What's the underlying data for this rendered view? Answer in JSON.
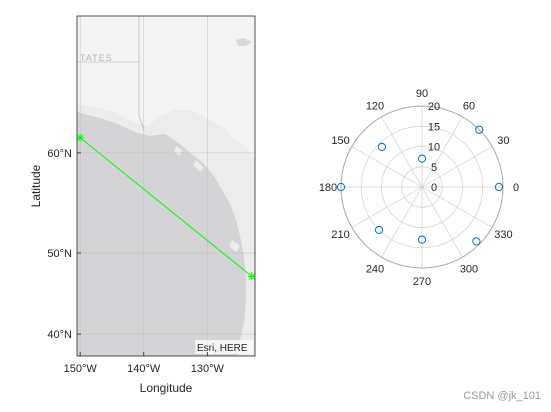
{
  "chart_data": [
    {
      "type": "map-line",
      "basemap_attribution": "Esri, HERE",
      "basemap_place_label": "TATES",
      "xlabel": "Longitude",
      "ylabel": "Latitude",
      "lon_range": [
        -150.5,
        -122.5
      ],
      "lat_range": [
        37,
        70
      ],
      "lon_ticks": [
        -150,
        -140,
        -130
      ],
      "lon_tick_labels": [
        "150°W",
        "140°W",
        "130°W"
      ],
      "lat_ticks": [
        40,
        50,
        60
      ],
      "lat_tick_labels": [
        "40°N",
        "50°N",
        "60°N"
      ],
      "line_color": "#00ff00",
      "line": [
        {
          "lon": -150,
          "lat": 61.3
        },
        {
          "lon": -123,
          "lat": 47.3
        }
      ]
    },
    {
      "type": "polar-scatter",
      "r_range": [
        0,
        20
      ],
      "r_ticks": [
        0,
        5,
        10,
        15,
        20
      ],
      "r_tick_labels": [
        "0",
        "5",
        "10",
        "15",
        "20"
      ],
      "r_tick_angle_deg": 90,
      "theta_ticks_deg": [
        0,
        30,
        60,
        90,
        120,
        150,
        180,
        210,
        240,
        270,
        300,
        330
      ],
      "theta_tick_labels": [
        "0",
        "30",
        "60",
        "90",
        "120",
        "150",
        "180",
        "210",
        "240",
        "270",
        "300",
        "330"
      ],
      "marker_color": "#0072bd",
      "points": [
        {
          "theta_deg": 0,
          "r": 19
        },
        {
          "theta_deg": 45,
          "r": 20
        },
        {
          "theta_deg": 90,
          "r": 7
        },
        {
          "theta_deg": 135,
          "r": 14
        },
        {
          "theta_deg": 180,
          "r": 21
        },
        {
          "theta_deg": 225,
          "r": 15
        },
        {
          "theta_deg": 270,
          "r": 13
        },
        {
          "theta_deg": 315,
          "r": 19
        }
      ]
    }
  ],
  "watermark": "CSDN @jk_101"
}
